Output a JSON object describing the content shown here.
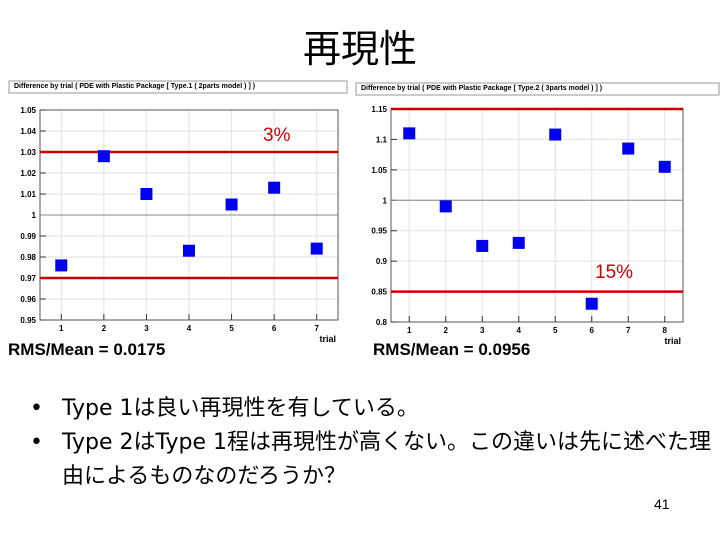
{
  "slide": {
    "title": "再現性",
    "page_number": "41",
    "bullets": [
      "Type 1は良い再現性を有している。",
      "Type 2はType 1程は再現性が高くない。この違いは先に述べた理由によるものなのだろうか？"
    ],
    "bullet_symbol": "•"
  },
  "plots": [
    {
      "header": "Difference by trial ( PDE  with Plastic Package [ Type.1 ( 2parts model ) ] )",
      "rms_label": "RMS/Mean = 0.0175",
      "annotation": "3%",
      "xlabel": "trial"
    },
    {
      "header": "Difference by trial ( PDE  with Plastic Package [ Type.2 ( 3parts model ) ] )",
      "rms_label": "RMS/Mean = 0.0956",
      "annotation": "15%",
      "xlabel": "trial"
    }
  ],
  "chart_data": [
    {
      "type": "scatter",
      "title": "Difference by trial ( PDE  with Plastic Package [ Type.1 ( 2parts model ) ] )",
      "xlabel": "trial",
      "ylabel": "",
      "xlim": [
        0.5,
        7.5
      ],
      "ylim": [
        0.95,
        1.05
      ],
      "xticks": [
        "1",
        "2",
        "3",
        "4",
        "5",
        "6",
        "7"
      ],
      "yticks": [
        "0.95",
        "0.96",
        "0.97",
        "0.98",
        "0.99",
        "1",
        "1.01",
        "1.02",
        "1.03",
        "1.04",
        "1.05"
      ],
      "x": [
        1,
        2,
        3,
        4,
        5,
        6,
        7
      ],
      "y": [
        0.976,
        1.028,
        1.01,
        0.983,
        1.005,
        1.013,
        0.984
      ],
      "reference_lines": [
        1.03,
        0.97,
        1.0
      ],
      "marker_color": "#0000ee",
      "line_color": "#cc0000"
    },
    {
      "type": "scatter",
      "title": "Difference by trial ( PDE  with Plastic Package [ Type.2 ( 3parts model ) ] )",
      "xlabel": "trial",
      "ylabel": "",
      "xlim": [
        0.5,
        8.5
      ],
      "ylim": [
        0.8,
        1.15
      ],
      "xticks": [
        "1",
        "2",
        "3",
        "4",
        "5",
        "6",
        "7",
        "8"
      ],
      "yticks": [
        "0.8",
        "0.85",
        "0.9",
        "0.95",
        "1",
        "1.05",
        "1.1",
        "1.15"
      ],
      "x": [
        1,
        2,
        3,
        4,
        5,
        6,
        7,
        8
      ],
      "y": [
        1.11,
        0.99,
        0.925,
        0.93,
        1.108,
        0.83,
        1.085,
        1.055
      ],
      "reference_lines": [
        1.15,
        0.85,
        1.0
      ],
      "marker_color": "#0000ee",
      "line_color": "#cc0000"
    }
  ]
}
